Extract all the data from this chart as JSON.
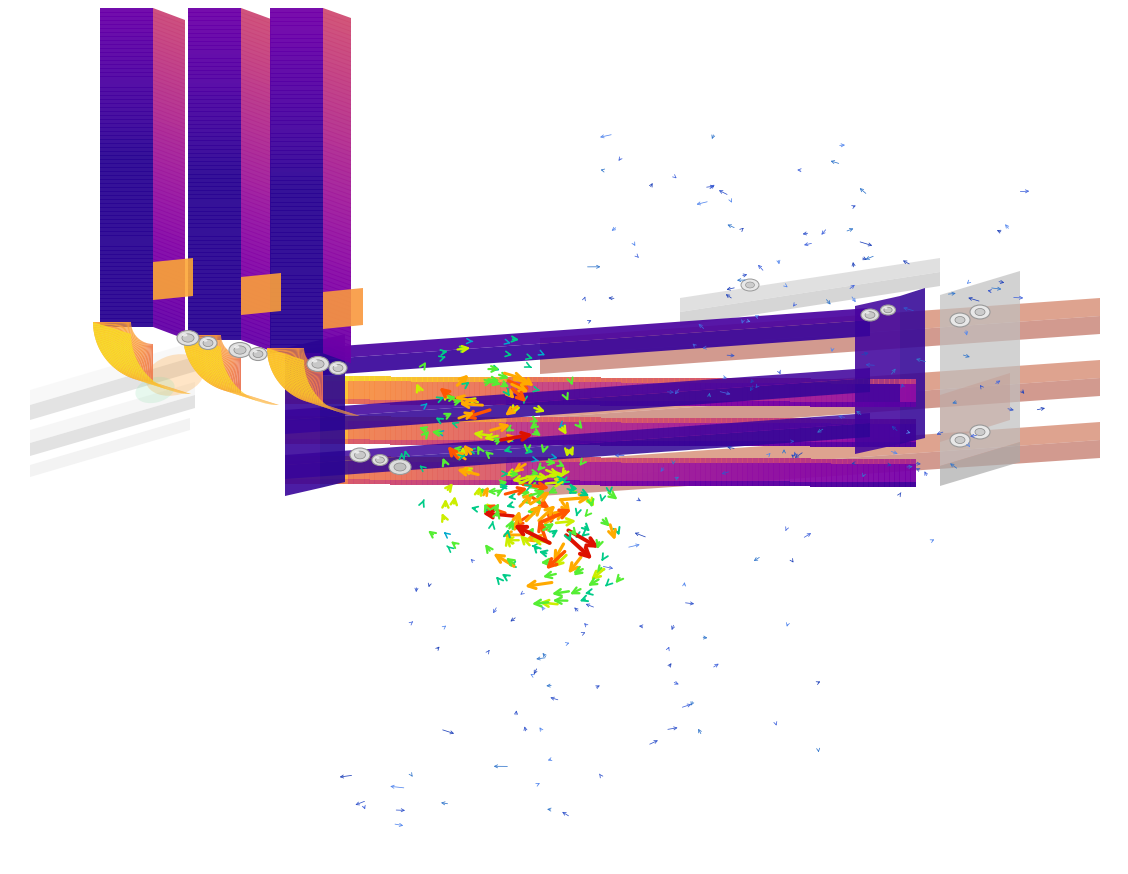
{
  "background_color": "#ffffff",
  "figsize": [
    11.28,
    8.74
  ],
  "dpi": 100,
  "plasma_low": "#1a0033",
  "plasma_orange": "#ff8c00",
  "copper_color": "#d4856a",
  "copper_dark": "#b86040",
  "silver": "#d8d8d8",
  "silver_dark": "#aaaaaa",
  "bolt_bright": "#eeeeee",
  "bolt_dark": "#888888"
}
